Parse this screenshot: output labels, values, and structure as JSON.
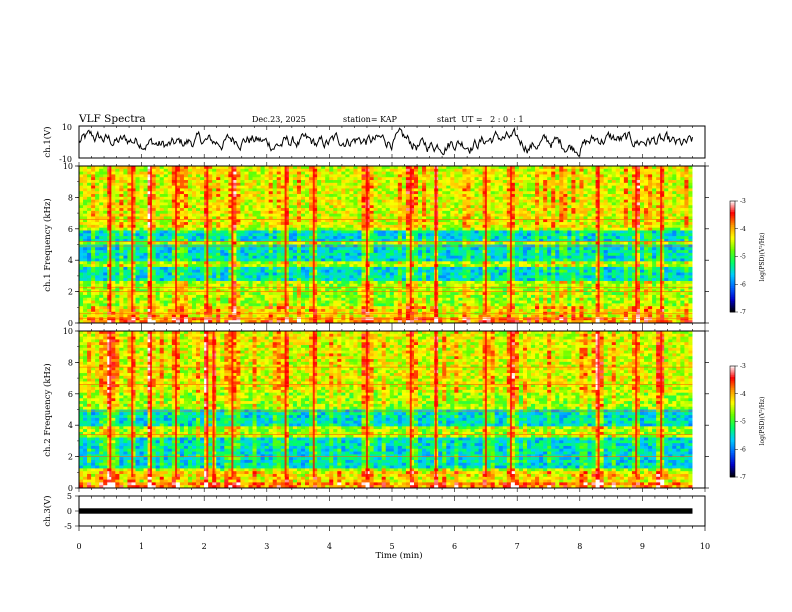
{
  "header": {
    "title": "VLF Spectra",
    "date": "Dec.23, 2025",
    "station": "station= KAP",
    "start_ut": "start  UT =   2 : 0  : 1"
  },
  "chart_data": [
    {
      "type": "line",
      "name": "ch1-waveform",
      "ylabel": "ch.1(V)",
      "ylim": [
        -10,
        10
      ],
      "ytick_labels": [
        "10",
        "-10"
      ],
      "xlim": [
        0,
        10
      ],
      "x_end": 9.8,
      "mean": 0,
      "amplitude_typical": 4,
      "note": "noisy waveform oscillating roughly between -8 and 8 V"
    },
    {
      "type": "heatmap",
      "name": "ch1-spectrogram",
      "ylabel": "ch.1 Frequency (kHz)",
      "ylim": [
        0,
        10
      ],
      "yticks": [
        0,
        2,
        4,
        6,
        8,
        10
      ],
      "ytick_labels": [
        "0",
        "2",
        "4",
        "6",
        "8",
        "10"
      ],
      "xlim": [
        0,
        10
      ],
      "x_end": 9.8,
      "colorbar": {
        "label": "log(PSD)(V²/Hz)",
        "range": [
          -7,
          -3
        ],
        "tick_labels": [
          "-3",
          "-4",
          "-5",
          "-6",
          "-7"
        ]
      },
      "low_psd_bands_khz": [
        [
          2.6,
          3.6
        ],
        [
          4.0,
          5.0
        ],
        [
          5.2,
          5.9
        ]
      ],
      "horizontal_lines_khz": [
        0.3,
        0.6,
        2.0,
        2.25,
        4.9,
        5.2,
        6.6
      ],
      "strong_vertical_events_min": [
        0.5,
        0.85,
        1.15,
        1.55,
        2.05,
        2.45,
        3.3,
        3.75,
        4.6,
        5.3,
        5.7,
        6.5,
        6.9,
        8.3,
        8.9,
        9.3
      ]
    },
    {
      "type": "heatmap",
      "name": "ch2-spectrogram",
      "ylabel": "ch.2 Frequency (kHz)",
      "ylim": [
        0,
        10
      ],
      "yticks": [
        0,
        2,
        4,
        6,
        8,
        10
      ],
      "ytick_labels": [
        "0",
        "2",
        "4",
        "6",
        "8",
        "10"
      ],
      "xlim": [
        0,
        10
      ],
      "x_end": 9.8,
      "colorbar": {
        "label": "log(PSD)(V²/Hz)",
        "range": [
          -7,
          -3
        ],
        "tick_labels": [
          "-3",
          "-4",
          "-5",
          "-6",
          "-7"
        ]
      },
      "low_psd_bands_khz": [
        [
          1.2,
          3.2
        ],
        [
          4.0,
          5.0
        ]
      ],
      "horizontal_lines_khz": [
        2.0,
        3.4,
        4.9,
        6.6,
        7.7
      ],
      "strong_vertical_events_min": [
        0.5,
        0.85,
        1.15,
        1.55,
        2.05,
        2.15,
        2.45,
        3.3,
        3.75,
        4.6,
        5.3,
        5.7,
        6.5,
        6.9,
        8.3,
        8.9,
        9.3
      ]
    },
    {
      "type": "line",
      "name": "ch3-signal",
      "ylabel": "ch.3(V)",
      "ylim": [
        -5,
        5
      ],
      "ytick_labels": [
        "5",
        "0",
        "-5"
      ],
      "xlim": [
        0,
        10
      ],
      "x_end": 9.8,
      "level": 0,
      "note": "dense oscillation near 0 V, appears as thick black band"
    }
  ],
  "x_axis": {
    "label": "Time (min)",
    "range": [
      0,
      10
    ],
    "ticks": [
      0,
      1,
      2,
      3,
      4,
      5,
      6,
      7,
      8,
      9,
      10
    ],
    "tick_labels": [
      "0",
      "1",
      "2",
      "3",
      "4",
      "5",
      "6",
      "7",
      "8",
      "9",
      "10"
    ]
  },
  "colors": {
    "axes": "#000000",
    "colormap": [
      "#000000",
      "#0000cc",
      "#0066ff",
      "#00ccff",
      "#00ff66",
      "#66ff00",
      "#ffff00",
      "#ff9900",
      "#ff0000",
      "#ffffff"
    ]
  }
}
